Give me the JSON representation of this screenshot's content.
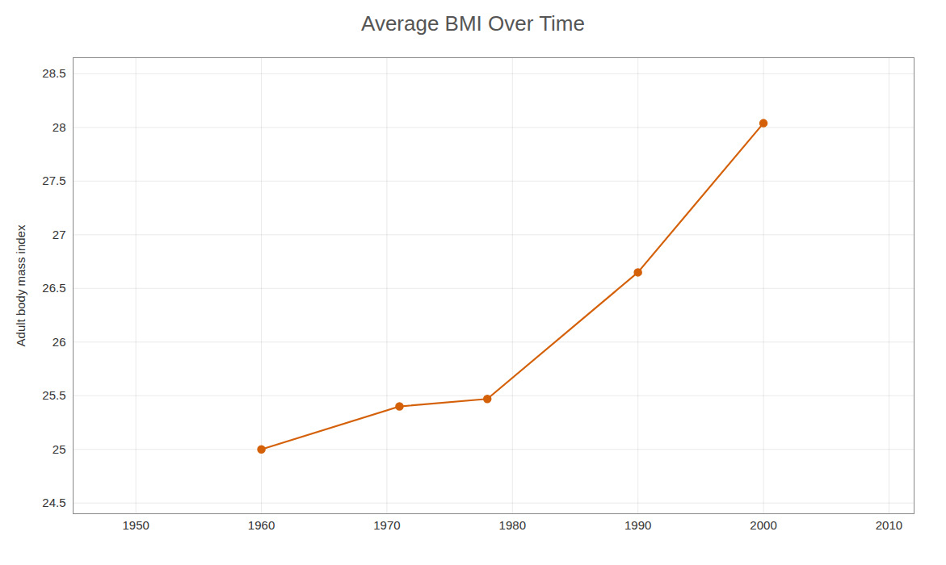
{
  "chart_data": {
    "type": "line",
    "title": "Average BMI Over Time",
    "ylabel": "Adult body mass index",
    "x": [
      1960,
      1971,
      1978,
      1990,
      2000
    ],
    "values": [
      25.0,
      25.4,
      25.47,
      26.65,
      28.04
    ],
    "color": "#d4610a",
    "marker": "circle",
    "xlim": [
      1945,
      2012
    ],
    "ylim": [
      24.4,
      28.65
    ],
    "xticks": [
      1950,
      1960,
      1970,
      1980,
      1990,
      2000,
      2010
    ],
    "yticks": [
      24.5,
      25,
      25.5,
      26,
      26.5,
      27,
      27.5,
      28,
      28.5
    ],
    "grid": true
  }
}
